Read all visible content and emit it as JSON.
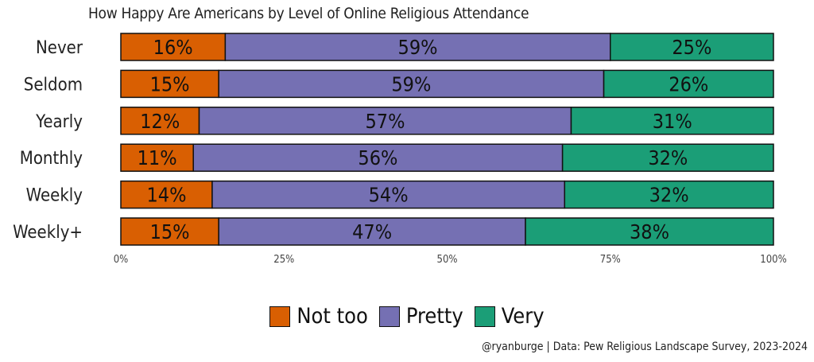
{
  "chart_data": {
    "type": "bar",
    "orientation": "horizontal",
    "stacked": true,
    "title": "How Happy Are Americans by Level of Online Religious Attendance",
    "caption": "@ryanburge | Data: Pew Religious Landscape Survey, 2023-2024",
    "categories": [
      "Never",
      "Seldom",
      "Yearly",
      "Monthly",
      "Weekly",
      "Weekly+"
    ],
    "series": [
      {
        "name": "Not too",
        "color": "#D95F02",
        "values": [
          16,
          15,
          12,
          11,
          14,
          15
        ]
      },
      {
        "name": "Pretty",
        "color": "#7570B3",
        "values": [
          59,
          59,
          57,
          56,
          54,
          47
        ]
      },
      {
        "name": "Very",
        "color": "#1B9E77",
        "values": [
          25,
          26,
          31,
          32,
          32,
          38
        ]
      }
    ],
    "xlim": [
      0,
      100
    ],
    "xticks": [
      "0%",
      "25%",
      "50%",
      "75%",
      "100%"
    ],
    "xlabel": "",
    "ylabel": "",
    "grid": false,
    "legend_position": "bottom"
  }
}
